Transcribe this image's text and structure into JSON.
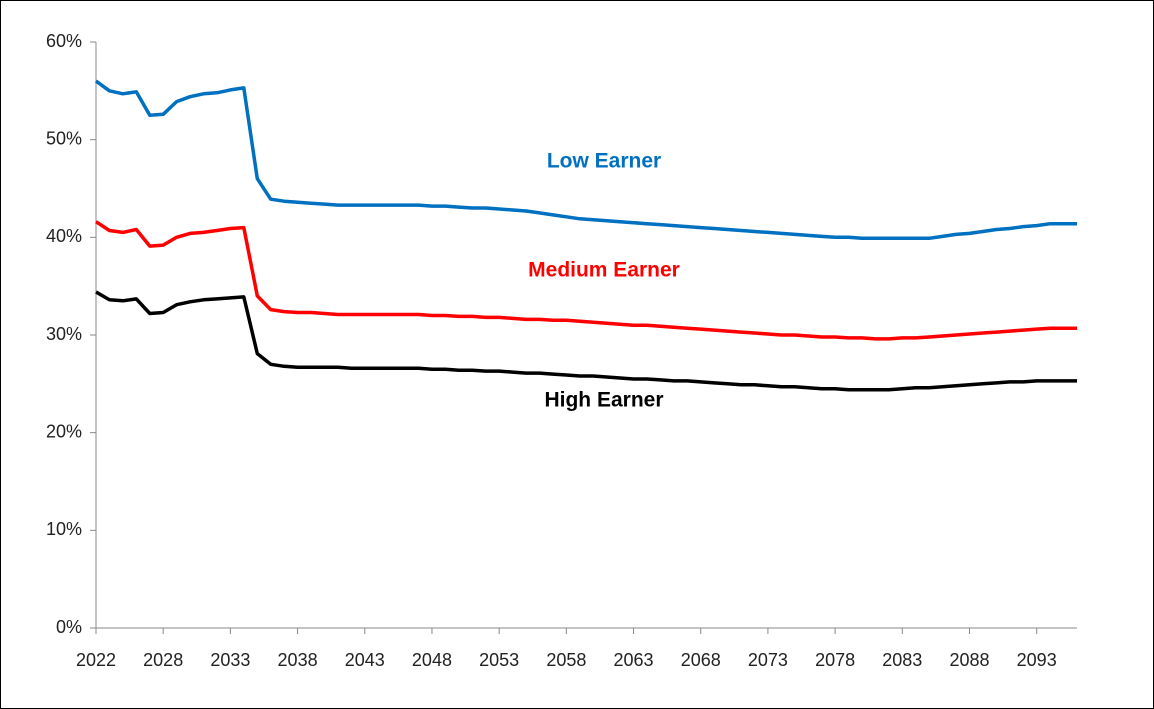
{
  "chart_data": {
    "type": "line",
    "categories": [
      "2022",
      null,
      null,
      null,
      null,
      "2028",
      null,
      null,
      null,
      null,
      "2033",
      null,
      null,
      null,
      null,
      "2038",
      null,
      null,
      null,
      null,
      "2043",
      null,
      null,
      null,
      null,
      "2048",
      null,
      null,
      null,
      null,
      "2053",
      null,
      null,
      null,
      null,
      "2058",
      null,
      null,
      null,
      null,
      "2063",
      null,
      null,
      null,
      null,
      "2068",
      null,
      null,
      null,
      null,
      "2073",
      null,
      null,
      null,
      null,
      "2078",
      null,
      null,
      null,
      null,
      "2083",
      null,
      null,
      null,
      null,
      "2088",
      null,
      null,
      null,
      null,
      "2093",
      null,
      null,
      null
    ],
    "series": [
      {
        "name": "Low Earner",
        "color": "#0070c0",
        "values": [
          56.0,
          55.0,
          54.7,
          54.9,
          52.5,
          52.6,
          53.9,
          54.4,
          54.7,
          54.8,
          55.1,
          55.3,
          46.0,
          43.9,
          43.7,
          43.6,
          43.5,
          43.4,
          43.3,
          43.3,
          43.3,
          43.3,
          43.3,
          43.3,
          43.3,
          43.2,
          43.2,
          43.1,
          43.0,
          43.0,
          42.9,
          42.8,
          42.7,
          42.5,
          42.3,
          42.1,
          41.9,
          41.8,
          41.7,
          41.6,
          41.5,
          41.4,
          41.3,
          41.2,
          41.1,
          41.0,
          40.9,
          40.8,
          40.7,
          40.6,
          40.5,
          40.4,
          40.3,
          40.2,
          40.1,
          40.0,
          40.0,
          39.9,
          39.9,
          39.9,
          39.9,
          39.9,
          39.9,
          40.1,
          40.3,
          40.4,
          40.6,
          40.8,
          40.9,
          41.1,
          41.2,
          41.4,
          41.4,
          41.4
        ]
      },
      {
        "name": "Medium Earner",
        "color": "#ff0000",
        "values": [
          41.6,
          40.7,
          40.5,
          40.8,
          39.1,
          39.2,
          40.0,
          40.4,
          40.5,
          40.7,
          40.9,
          41.0,
          34.0,
          32.6,
          32.4,
          32.3,
          32.3,
          32.2,
          32.1,
          32.1,
          32.1,
          32.1,
          32.1,
          32.1,
          32.1,
          32.0,
          32.0,
          31.9,
          31.9,
          31.8,
          31.8,
          31.7,
          31.6,
          31.6,
          31.5,
          31.5,
          31.4,
          31.3,
          31.2,
          31.1,
          31.0,
          31.0,
          30.9,
          30.8,
          30.7,
          30.6,
          30.5,
          30.4,
          30.3,
          30.2,
          30.1,
          30.0,
          30.0,
          29.9,
          29.8,
          29.8,
          29.7,
          29.7,
          29.6,
          29.6,
          29.7,
          29.7,
          29.8,
          29.9,
          30.0,
          30.1,
          30.2,
          30.3,
          30.4,
          30.5,
          30.6,
          30.7,
          30.7,
          30.7
        ]
      },
      {
        "name": "High Earner",
        "color": "#000000",
        "values": [
          34.4,
          33.6,
          33.5,
          33.7,
          32.2,
          32.3,
          33.1,
          33.4,
          33.6,
          33.7,
          33.8,
          33.9,
          28.1,
          27.0,
          26.8,
          26.7,
          26.7,
          26.7,
          26.7,
          26.6,
          26.6,
          26.6,
          26.6,
          26.6,
          26.6,
          26.5,
          26.5,
          26.4,
          26.4,
          26.3,
          26.3,
          26.2,
          26.1,
          26.1,
          26.0,
          25.9,
          25.8,
          25.8,
          25.7,
          25.6,
          25.5,
          25.5,
          25.4,
          25.3,
          25.3,
          25.2,
          25.1,
          25.0,
          24.9,
          24.9,
          24.8,
          24.7,
          24.7,
          24.6,
          24.5,
          24.5,
          24.4,
          24.4,
          24.4,
          24.4,
          24.5,
          24.6,
          24.6,
          24.7,
          24.8,
          24.9,
          25.0,
          25.1,
          25.2,
          25.2,
          25.3,
          25.3,
          25.3,
          25.3
        ]
      }
    ],
    "ylim": [
      0,
      60
    ],
    "yticks": [
      {
        "value": 0,
        "label": "0%"
      },
      {
        "value": 10,
        "label": "10%"
      },
      {
        "value": 20,
        "label": "20%"
      },
      {
        "value": 30,
        "label": "30%"
      },
      {
        "value": 40,
        "label": "40%"
      },
      {
        "value": 50,
        "label": "50%"
      },
      {
        "value": 60,
        "label": "60%"
      }
    ],
    "grid": false
  }
}
